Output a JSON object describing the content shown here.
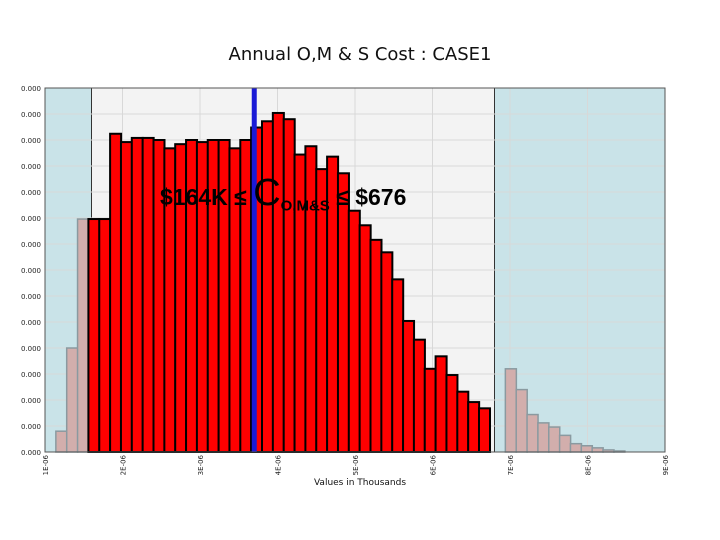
{
  "chart_data": {
    "type": "bar",
    "title": "Annual O,M & S Cost : CASE1",
    "xlabel": "Values in Thousands",
    "ylabel": "",
    "x_tick_labels": [
      "1E-06",
      "2E-06",
      "3E-06",
      "4E-06",
      "5E-06",
      "6E-06",
      "7E-06",
      "8E-06",
      "9E-06"
    ],
    "y_tick_labels": [
      "0.000",
      "0.000",
      "0.000",
      "0.000",
      "0.000",
      "0.000",
      "0.000",
      "0.000",
      "0.000",
      "0.000",
      "0.000",
      "0.000",
      "0.000",
      "0.000",
      "0.000"
    ],
    "annotation": {
      "prefix": "$164K ≤ ",
      "symbol": "C",
      "subscript": "O,M&S",
      "suffix": " ≤ $676"
    },
    "shaded_regions": [
      [
        1,
        1.6
      ],
      [
        6.8,
        9
      ]
    ],
    "marker_x": 3.7,
    "bin_width": 0.142,
    "bars_outside": {
      "x": [
        1.14,
        1.28,
        1.42,
        1.56,
        6.94,
        7.08,
        7.22,
        7.36,
        7.5,
        7.64,
        7.78,
        7.92,
        8.06,
        8.2,
        8.34
      ],
      "values": [
        1.0,
        5.0,
        11.2,
        11.2,
        4.0,
        3.0,
        1.8,
        1.4,
        1.2,
        0.8,
        0.4,
        0.3,
        0.2,
        0.1,
        0.05
      ]
    },
    "bars_inside": {
      "x": [
        1.56,
        1.7,
        1.84,
        1.98,
        2.12,
        2.26,
        2.4,
        2.54,
        2.68,
        2.82,
        2.96,
        3.1,
        3.24,
        3.38,
        3.52,
        3.66,
        3.8,
        3.94,
        4.08,
        4.22,
        4.36,
        4.5,
        4.64,
        4.78,
        4.92,
        5.06,
        5.2,
        5.34,
        5.48,
        5.62,
        5.76,
        5.9,
        6.04,
        6.18,
        6.32,
        6.46,
        6.6
      ],
      "values": [
        11.2,
        11.2,
        15.3,
        14.9,
        15.1,
        15.1,
        15.0,
        14.6,
        14.8,
        15.0,
        14.9,
        15.0,
        15.0,
        14.6,
        15.0,
        15.6,
        15.9,
        16.3,
        16.0,
        14.3,
        14.7,
        13.6,
        14.2,
        13.4,
        11.6,
        10.9,
        10.2,
        9.6,
        8.3,
        6.3,
        5.4,
        4.0,
        4.6,
        3.7,
        2.9,
        2.4,
        2.1
      ]
    },
    "ylim": [
      0,
      17.5
    ],
    "xlim": [
      1,
      9
    ],
    "colors": {
      "inside": "#ff0000",
      "outside": "#d2aeac",
      "shade": "#c9e3e8",
      "plot_bg": "#f3f3f3",
      "marker": "#1a1ad6",
      "grid": "#d8d8d8"
    }
  }
}
